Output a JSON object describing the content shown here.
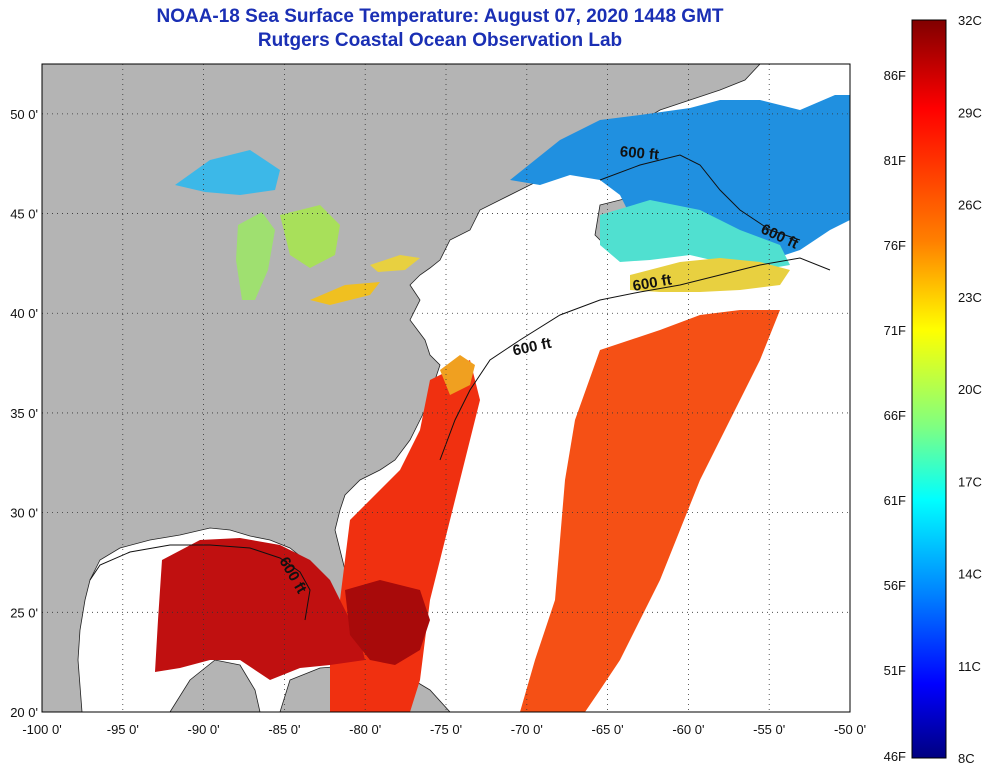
{
  "header": {
    "title": "NOAA-18 Sea Surface Temperature:  August 07, 2020 1448 GMT",
    "subtitle": "Rutgers Coastal Ocean Observation Lab"
  },
  "axes": {
    "lon_labels": [
      "-100 0'",
      "-95 0'",
      "-90 0'",
      "-85 0'",
      "-80 0'",
      "-75 0'",
      "-70 0'",
      "-65 0'",
      "-60 0'",
      "-55 0'",
      "-50 0'"
    ],
    "lat_labels": [
      "50 0'",
      "45 0'",
      "40 0'",
      "35 0'",
      "30 0'",
      "25 0'",
      "20 0'"
    ],
    "lon_range": [
      -100,
      -50
    ],
    "lat_range": [
      20,
      52.5
    ]
  },
  "contours": {
    "labels": [
      "600 ft",
      "600 ft",
      "600 ft",
      "600 ft",
      "600 ft"
    ]
  },
  "colorbar": {
    "celsius_labels": [
      "32C",
      "29C",
      "26C",
      "23C",
      "20C",
      "17C",
      "14C",
      "11C",
      "8C"
    ],
    "fahrenheit_labels": [
      "86F",
      "81F",
      "76F",
      "71F",
      "66F",
      "61F",
      "56F",
      "51F",
      "46F"
    ],
    "colors": [
      "#800000",
      "#ff0000",
      "#ff8000",
      "#ffff00",
      "#80ff80",
      "#00ffff",
      "#0080ff",
      "#0000ff",
      "#000080"
    ]
  },
  "colors": {
    "land": "#b4b4b4",
    "no_data": "#ffffff",
    "title": "#1a2fb4"
  }
}
